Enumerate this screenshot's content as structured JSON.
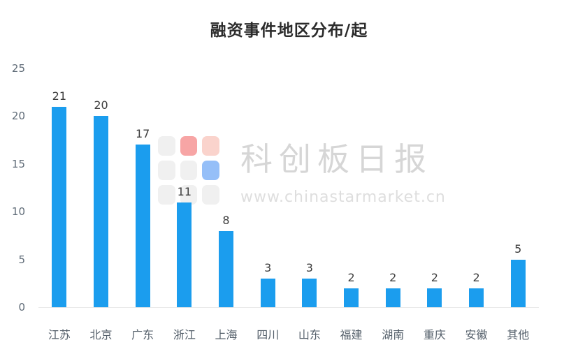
{
  "chart_data": {
    "type": "bar",
    "title": "融资事件地区分布/起",
    "categories": [
      "江苏",
      "北京",
      "广东",
      "浙江",
      "上海",
      "四川",
      "山东",
      "福建",
      "湖南",
      "重庆",
      "安徽",
      "其他"
    ],
    "values": [
      21,
      20,
      17,
      11,
      8,
      3,
      3,
      2,
      2,
      2,
      2,
      5
    ],
    "ylim": [
      0,
      25
    ],
    "yticks": [
      0,
      5,
      10,
      15,
      20,
      25
    ],
    "xlabel": "",
    "ylabel": "",
    "grid": "off",
    "legend": "none",
    "value_labels": "above",
    "bar_color": "#1b9dee"
  },
  "watermark": {
    "brand": "科创板日报",
    "url": "www.chinastarmarket.cn",
    "logo_colors": [
      [
        "#e4e4e4",
        "#f25c5c",
        "#f7b0a4"
      ],
      [
        "#e4e4e4",
        "#e4e4e4",
        "#3f8cf3"
      ],
      [
        "#e4e4e4",
        "#e4e4e4",
        "#e4e4e4"
      ]
    ]
  },
  "style": {
    "title_color": "#2b2b2b",
    "axis_label_color": "#5f6b77",
    "value_label_color": "#3d3d3d",
    "baseline_color": "#e8e8e8",
    "background": "#ffffff"
  }
}
